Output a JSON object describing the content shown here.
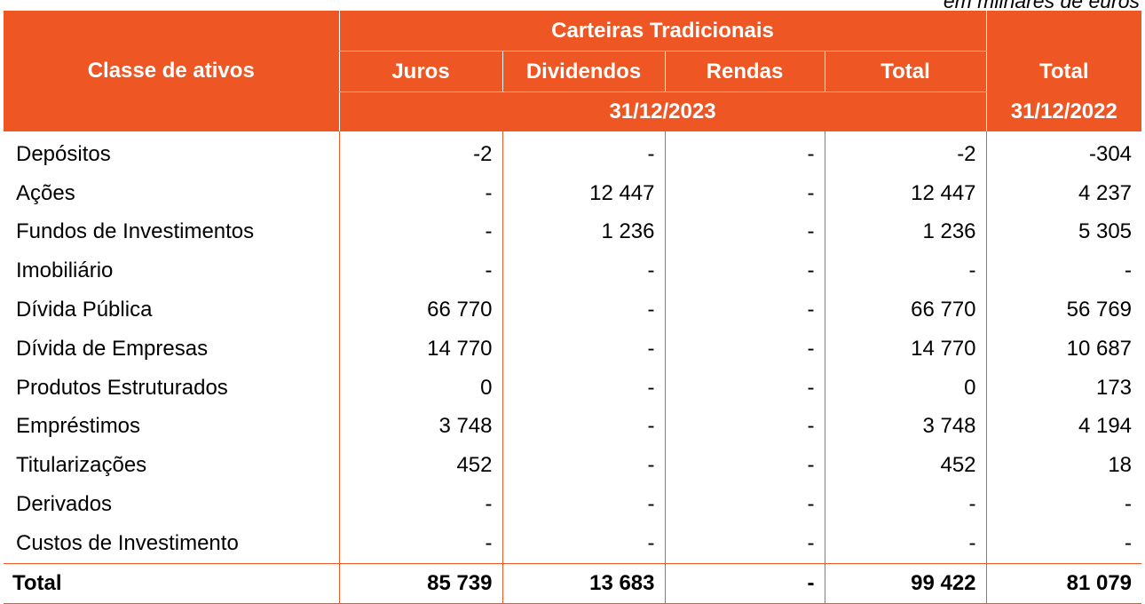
{
  "unit_note": "em milhares de euros",
  "header": {
    "row_label": "Classe de ativos",
    "group": "Carteiras Tradicionais",
    "columns": [
      "Juros",
      "Dividendos",
      "Rendas",
      "Total",
      "Total"
    ],
    "period_current": "31/12/2023",
    "period_previous": "31/12/2022"
  },
  "rows": [
    {
      "label": "Depósitos",
      "values": [
        "-2",
        "-",
        "-",
        "-2",
        "-304"
      ]
    },
    {
      "label": "Ações",
      "values": [
        "-",
        "12 447",
        "-",
        "12 447",
        "4 237"
      ]
    },
    {
      "label": "Fundos de Investimentos",
      "values": [
        "-",
        "1 236",
        "-",
        "1 236",
        "5 305"
      ]
    },
    {
      "label": "Imobiliário",
      "values": [
        "-",
        "-",
        "-",
        "-",
        "-"
      ]
    },
    {
      "label": "Dívida Pública",
      "values": [
        "66 770",
        "-",
        "-",
        "66 770",
        "56 769"
      ]
    },
    {
      "label": "Dívida de Empresas",
      "values": [
        "14 770",
        "-",
        "-",
        "14 770",
        "10 687"
      ]
    },
    {
      "label": "Produtos Estruturados",
      "values": [
        "0",
        "-",
        "-",
        "0",
        "173"
      ]
    },
    {
      "label": "Empréstimos",
      "values": [
        "3 748",
        "-",
        "-",
        "3 748",
        "4 194"
      ]
    },
    {
      "label": "Titularizações",
      "values": [
        "452",
        "-",
        "-",
        "452",
        "18"
      ]
    },
    {
      "label": "Derivados",
      "values": [
        "-",
        "-",
        "-",
        "-",
        "-"
      ]
    },
    {
      "label": "Custos de Investimento",
      "values": [
        "-",
        "-",
        "-",
        "-",
        "-"
      ]
    }
  ],
  "total": {
    "label": "Total",
    "values": [
      "85 739",
      "13 683",
      "-",
      "99 422",
      "81 079"
    ]
  },
  "colors": {
    "header_bg": "#ee5724",
    "header_text": "#ffffff",
    "rule": "#ee5724"
  }
}
